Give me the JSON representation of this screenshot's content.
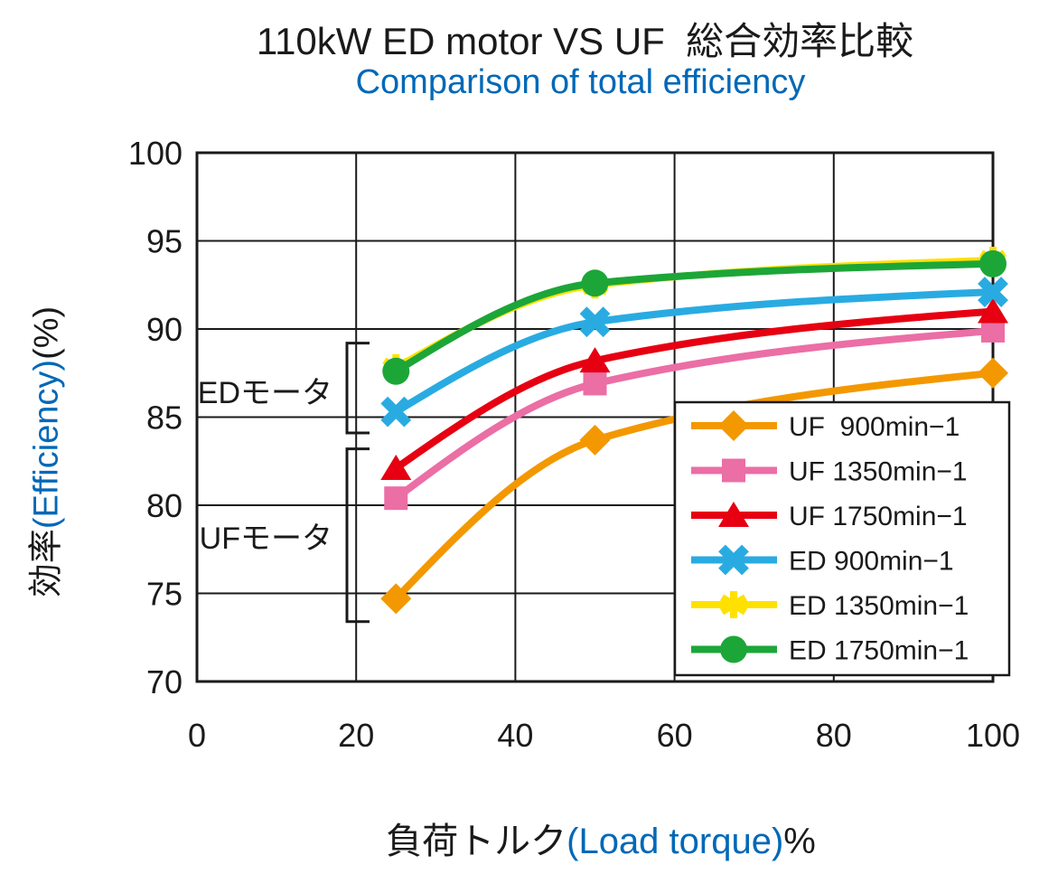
{
  "chart_data": {
    "type": "line",
    "title": "110kW ED motor VS UF  総合効率比較",
    "subtitle": "Comparison of total efficiency",
    "title_color": "#1a1a1a",
    "subtitle_color": "#0068b7",
    "ink_color": "#1a1a1a",
    "xlabel": "負荷トルク(Load torque)%",
    "ylabel": "効率(Efficiency)(%)",
    "xlabel_parts": [
      {
        "text": "負荷トルク",
        "color": "#1a1a1a"
      },
      {
        "text": "(Load torque)",
        "color": "#0068b7"
      },
      {
        "text": "%",
        "color": "#1a1a1a"
      }
    ],
    "ylabel_parts": [
      {
        "text": "効率",
        "color": "#1a1a1a"
      },
      {
        "text": "(Efficiency)",
        "color": "#0068b7"
      },
      {
        "text": "(%)",
        "color": "#1a1a1a"
      }
    ],
    "xlim": [
      0,
      100
    ],
    "ylim": [
      70,
      100
    ],
    "x_ticks": [
      0,
      20,
      40,
      60,
      80,
      100
    ],
    "y_ticks": [
      70,
      75,
      80,
      85,
      90,
      95,
      100
    ],
    "grid": true,
    "x": [
      25,
      50,
      100
    ],
    "series": [
      {
        "name": "UF  900min−1",
        "marker": "diamond",
        "color": "#f39800",
        "values": [
          74.7,
          83.7,
          87.5
        ]
      },
      {
        "name": "UF 1350min−1",
        "marker": "square",
        "color": "#eb6ea5",
        "values": [
          80.4,
          86.9,
          89.9
        ]
      },
      {
        "name": "UF 1750min−1",
        "marker": "triangle",
        "color": "#e60012",
        "values": [
          82.1,
          88.2,
          91.0
        ]
      },
      {
        "name": "ED 900min−1",
        "marker": "x",
        "color": "#29abe2",
        "values": [
          85.3,
          90.4,
          92.1
        ]
      },
      {
        "name": "ED 1350min−1",
        "marker": "asterisk",
        "color": "#ffe100",
        "values": [
          87.8,
          92.5,
          93.9
        ]
      },
      {
        "name": "ED 1750min−1",
        "marker": "circle",
        "color": "#1ca638",
        "values": [
          87.6,
          92.6,
          93.7
        ]
      }
    ],
    "legend_position": "inside-right",
    "annotations": [
      {
        "label": "EDモータ",
        "y_range": [
          84.1,
          89.2
        ]
      },
      {
        "label": "UFモータ",
        "y_range": [
          73.4,
          83.2
        ]
      }
    ]
  }
}
